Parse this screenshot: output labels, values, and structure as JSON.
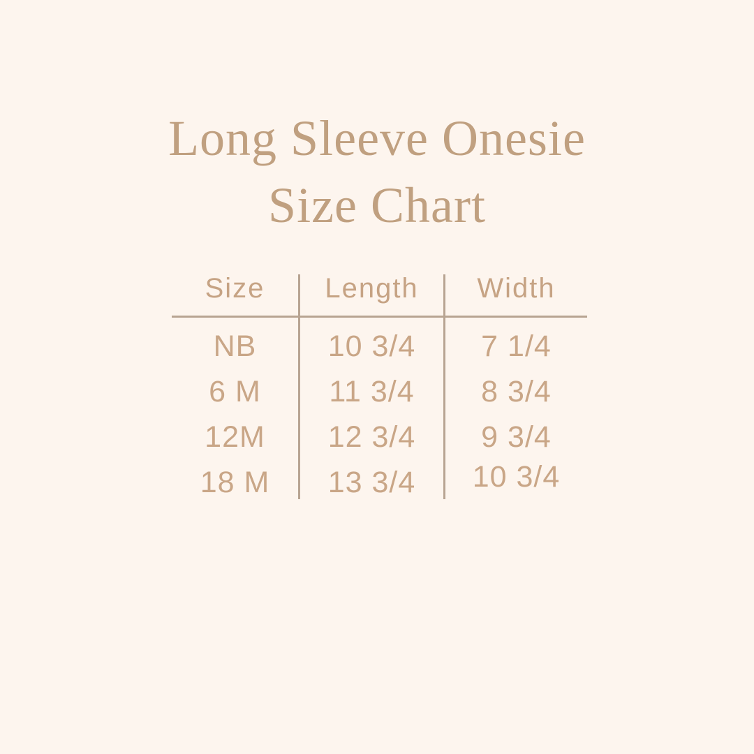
{
  "title": {
    "line1": "Long Sleeve Onesie",
    "line2": "Size Chart"
  },
  "chart_data": {
    "type": "table",
    "title": "Long Sleeve Onesie Size Chart",
    "columns": [
      "Size",
      "Length",
      "Width"
    ],
    "rows": [
      [
        "NB",
        "10 3/4",
        "7 1/4"
      ],
      [
        "6 M",
        "11 3/4",
        "8 3/4"
      ],
      [
        "12M",
        "12 3/4",
        "9 3/4"
      ],
      [
        "18 M",
        "13 3/4",
        "10 3/4"
      ]
    ]
  },
  "colors": {
    "background": "#fdf5ee",
    "title_text": "#c0a080",
    "table_text": "#c9a687",
    "rule_lines": "#b8a492"
  }
}
